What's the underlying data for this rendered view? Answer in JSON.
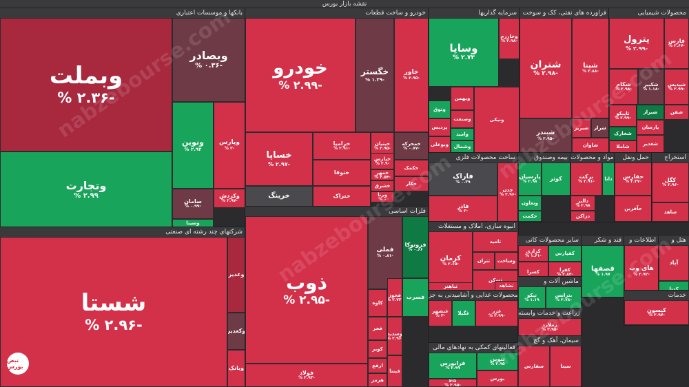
{
  "title": "نقشه بازار بورس",
  "watermark": "nabzebourse.com",
  "logo_text": "نبض بورس",
  "colors": {
    "down": "#d3304a",
    "down_dark": "#a8283e",
    "down_muted": "#6e3a45",
    "neutral": "#4a4a4e",
    "up": "#19a45b",
    "up_dark": "#0f7a43"
  },
  "chart_data": {
    "type": "treemap",
    "sectors": [
      {
        "name": "بانکها و موسسات اعتباری",
        "items": [
          {
            "name": "وبملت",
            "change": "% ۲.۳۶-"
          },
          {
            "name": "وبصادر",
            "change": "% ۰.۳۶-"
          },
          {
            "name": "وتجارت",
            "change": "% ۲.۹۹"
          },
          {
            "name": "ونوین",
            "change": "% ۲.۹۴"
          },
          {
            "name": "وپارس",
            "change": "% ۳-"
          },
          {
            "name": "سامان",
            "change": "% ۰.۹۹-"
          },
          {
            "name": "وکردش",
            "change": "% ۲.۹۷-"
          },
          {
            "name": "وسینا",
            "change": ""
          }
        ]
      },
      {
        "name": "شرکتهای چند رشته ای صنعتی",
        "items": [
          {
            "name": "شستا",
            "change": "% ۲.۹۶-"
          },
          {
            "name": "وغدیر",
            "change": ""
          },
          {
            "name": "وکغدیر",
            "change": ""
          },
          {
            "name": "وبانک",
            "change": ""
          }
        ]
      },
      {
        "name": "خودرو و ساخت قطعات",
        "items": [
          {
            "name": "خودرو",
            "change": "% ۲.۹۹-"
          },
          {
            "name": "خگستر",
            "change": "% ۱.۳۹-"
          },
          {
            "name": "خاور",
            "change": "% ۲.۹۵-"
          },
          {
            "name": "خساپا",
            "change": "% ۲.۹۷-"
          },
          {
            "name": "خزامیا",
            "change": "% ۲.۹۱-"
          },
          {
            "name": "خبنیان",
            "change": "% ۲.۹۵-"
          },
          {
            "name": "خمحرکه",
            "change": "% ۰.۷۷-"
          },
          {
            "name": "ختوقا",
            "change": ""
          },
          {
            "name": "خپارس",
            "change": "% ۲.۹-"
          },
          {
            "name": "خکمک",
            "change": ""
          },
          {
            "name": "ختراک",
            "change": ""
          },
          {
            "name": "خمهر",
            "change": "% ۲.۵۴-"
          },
          {
            "name": "خشرق",
            "change": ""
          },
          {
            "name": "خرینگ",
            "change": ""
          },
          {
            "name": "ورنا",
            "change": "% ۰"
          },
          {
            "name": "خکار",
            "change": ""
          },
          {
            "name": "خریخت",
            "change": ""
          }
        ]
      },
      {
        "name": "فلزات اساسی",
        "items": [
          {
            "name": "ذوب",
            "change": "% ۲.۹۵-"
          },
          {
            "name": "فملی",
            "change": "% ۰.۸۱-"
          },
          {
            "name": "فولاد",
            "change": "% ۲.۹۳-"
          },
          {
            "name": "کاوه",
            "change": ""
          },
          {
            "name": "فروتوکا",
            "change": "% ۰.۶۶"
          },
          {
            "name": "فجر",
            "change": ""
          },
          {
            "name": "کویر",
            "change": ""
          },
          {
            "name": "ارفع",
            "change": ""
          },
          {
            "name": "هرمز",
            "change": ""
          },
          {
            "name": "فسرب",
            "change": ""
          },
          {
            "name": "فخوز",
            "change": "% ۲.۷۲-"
          },
          {
            "name": "وسدید",
            "change": "% ۲.۹۶-"
          },
          {
            "name": "فپنتا",
            "change": ""
          }
        ]
      },
      {
        "name": "سرمایه گذاریها",
        "items": [
          {
            "name": "وساپا",
            "change": "% ۲.۷۳"
          },
          {
            "name": "وخارزم",
            "change": "% ۲.۹۸-"
          },
          {
            "name": "وبهمن",
            "change": ""
          },
          {
            "name": "وتوق",
            "change": ""
          },
          {
            "name": "وصنعت",
            "change": ""
          },
          {
            "name": "ونیکی",
            "change": ""
          },
          {
            "name": "پردیس",
            "change": ""
          },
          {
            "name": "وبوعلی",
            "change": ""
          },
          {
            "name": "وامید",
            "change": ""
          },
          {
            "name": "وشمال",
            "change": ""
          }
        ]
      },
      {
        "name": "فراورده های نفتی، کک و سوخت",
        "items": [
          {
            "name": "شتران",
            "change": "% ۲.۹۸-"
          },
          {
            "name": "شپنا",
            "change": "% ۲.۸۸-"
          },
          {
            "name": "شبندر",
            "change": "% ۲.۹۵-"
          },
          {
            "name": "شبریز",
            "change": ""
          },
          {
            "name": "شراز",
            "change": ""
          },
          {
            "name": "شاوان",
            "change": ""
          }
        ]
      },
      {
        "name": "محصولات شیمیایی",
        "items": [
          {
            "name": "پترول",
            "change": "% ۲.۹۹-"
          },
          {
            "name": "فارس",
            "change": "% ۲.۶۷-"
          },
          {
            "name": "شکام",
            "change": "% ۲.۹۸-"
          },
          {
            "name": "شکبیر",
            "change": "% ۱.۱۸-"
          },
          {
            "name": "شپدیس",
            "change": "% ۲.۹۹-"
          },
          {
            "name": "تاپیکو",
            "change": "% ۲.۹۹-"
          },
          {
            "name": "شیراز",
            "change": ""
          },
          {
            "name": "شفن",
            "change": ""
          },
          {
            "name": "پارسان",
            "change": ""
          },
          {
            "name": "شخارک",
            "change": ""
          },
          {
            "name": "شاملا",
            "change": ""
          },
          {
            "name": "شغدیر",
            "change": ""
          }
        ]
      },
      {
        "name": "ساخت محصولات فلزی",
        "items": [
          {
            "name": "فاراک",
            "change": "% ۰.۳۹"
          },
          {
            "name": "فاذر",
            "change": "% ۳-"
          },
          {
            "name": "چدن",
            "change": "% ۲.۹۶-"
          }
        ]
      },
      {
        "name": "بیمه وصندوق",
        "items": [
          {
            "name": "پارسیان",
            "change": "% ۲.۹۸"
          },
          {
            "name": "کوثر",
            "change": ""
          },
          {
            "name": "وتعاون",
            "change": ""
          },
          {
            "name": "حکمت",
            "change": ""
          }
        ]
      },
      {
        "name": "مواد و محصولات",
        "items": [
          {
            "name": "برکت",
            "change": "% ۲.۹۱-"
          },
          {
            "name": "دانا",
            "change": ""
          },
          {
            "name": "دالبر",
            "change": "% ۲.۹۸"
          },
          {
            "name": "دزاکن",
            "change": ""
          }
        ]
      },
      {
        "name": "حمل ونقل",
        "items": [
          {
            "name": "حفارس",
            "change": "% ۲.۳۷-"
          },
          {
            "name": "حآفرین",
            "change": ""
          }
        ]
      },
      {
        "name": "استخراج",
        "items": [
          {
            "name": "کگل",
            "change": "% ۲.۹۶-"
          },
          {
            "name": "ساهد",
            "change": ""
          }
        ]
      },
      {
        "name": "انبوه سازی، املاک و مستغلات",
        "items": [
          {
            "name": "کرمان",
            "change": "% ۲.۶۵-"
          },
          {
            "name": "ثامید",
            "change": ""
          },
          {
            "name": "ثتران",
            "change": ""
          },
          {
            "name": "وساخت",
            "change": ""
          },
          {
            "name": "ثسکن",
            "change": ""
          },
          {
            "name": "ثباهنر",
            "change": ""
          },
          {
            "name": "ثشاهد",
            "change": ""
          }
        ]
      },
      {
        "name": "سایر محصولات کانی",
        "items": [
          {
            "name": "کرازی",
            "change": "% ۱.۶۱-"
          },
          {
            "name": "کفپارس",
            "change": ""
          },
          {
            "name": "کسرا",
            "change": ""
          },
          {
            "name": "کفرا",
            "change": "% ۲.۸۴-"
          }
        ]
      },
      {
        "name": "قند و شکر",
        "items": [
          {
            "name": "قصفها",
            "change": "% ۱.۹۷"
          }
        ]
      },
      {
        "name": "اطلاعات و",
        "items": [
          {
            "name": "های وب",
            "change": "% ۲.۹۲-"
          }
        ]
      },
      {
        "name": "هتل و",
        "items": [
          {
            "name": "آباد",
            "change": ""
          },
          {
            "name": "کدتا",
            "change": ""
          }
        ]
      },
      {
        "name": "محصولات غذایی و آشامیدنی به جز",
        "items": [
          {
            "name": "غبشهر",
            "change": "% ۳-"
          },
          {
            "name": "غگیلا",
            "change": ""
          },
          {
            "name": "غزر",
            "change": "% ۲.۹۹-"
          }
        ]
      },
      {
        "name": "ماشین آلات و",
        "items": [
          {
            "name": "تپکو",
            "change": "% ۱.۱۹"
          },
          {
            "name": "بترانس",
            "change": "% ۲.۷۸-"
          }
        ]
      },
      {
        "name": "زراعت و خدمات وابسته",
        "items": [
          {
            "name": "زملارد",
            "change": "% ۲.۹۵-"
          }
        ]
      },
      {
        "name": "فعالیتهای کمکی به نهادهای مالی",
        "items": [
          {
            "name": "فرابورس",
            "change": "% ۲.۹۹"
          },
          {
            "name": "تنوین",
            "change": "% ۲.۹۵"
          },
          {
            "name": "کالا",
            "change": "% ۲.۹۵-"
          },
          {
            "name": "بورس",
            "change": ""
          }
        ]
      },
      {
        "name": "سیمان، آهک و گچ",
        "items": [
          {
            "name": "سفارس",
            "change": ""
          },
          {
            "name": "سیتا",
            "change": ""
          }
        ]
      },
      {
        "name": "خدمات",
        "items": [
          {
            "name": "کیسون",
            "change": "% ۲.۹۷-"
          }
        ]
      }
    ]
  }
}
